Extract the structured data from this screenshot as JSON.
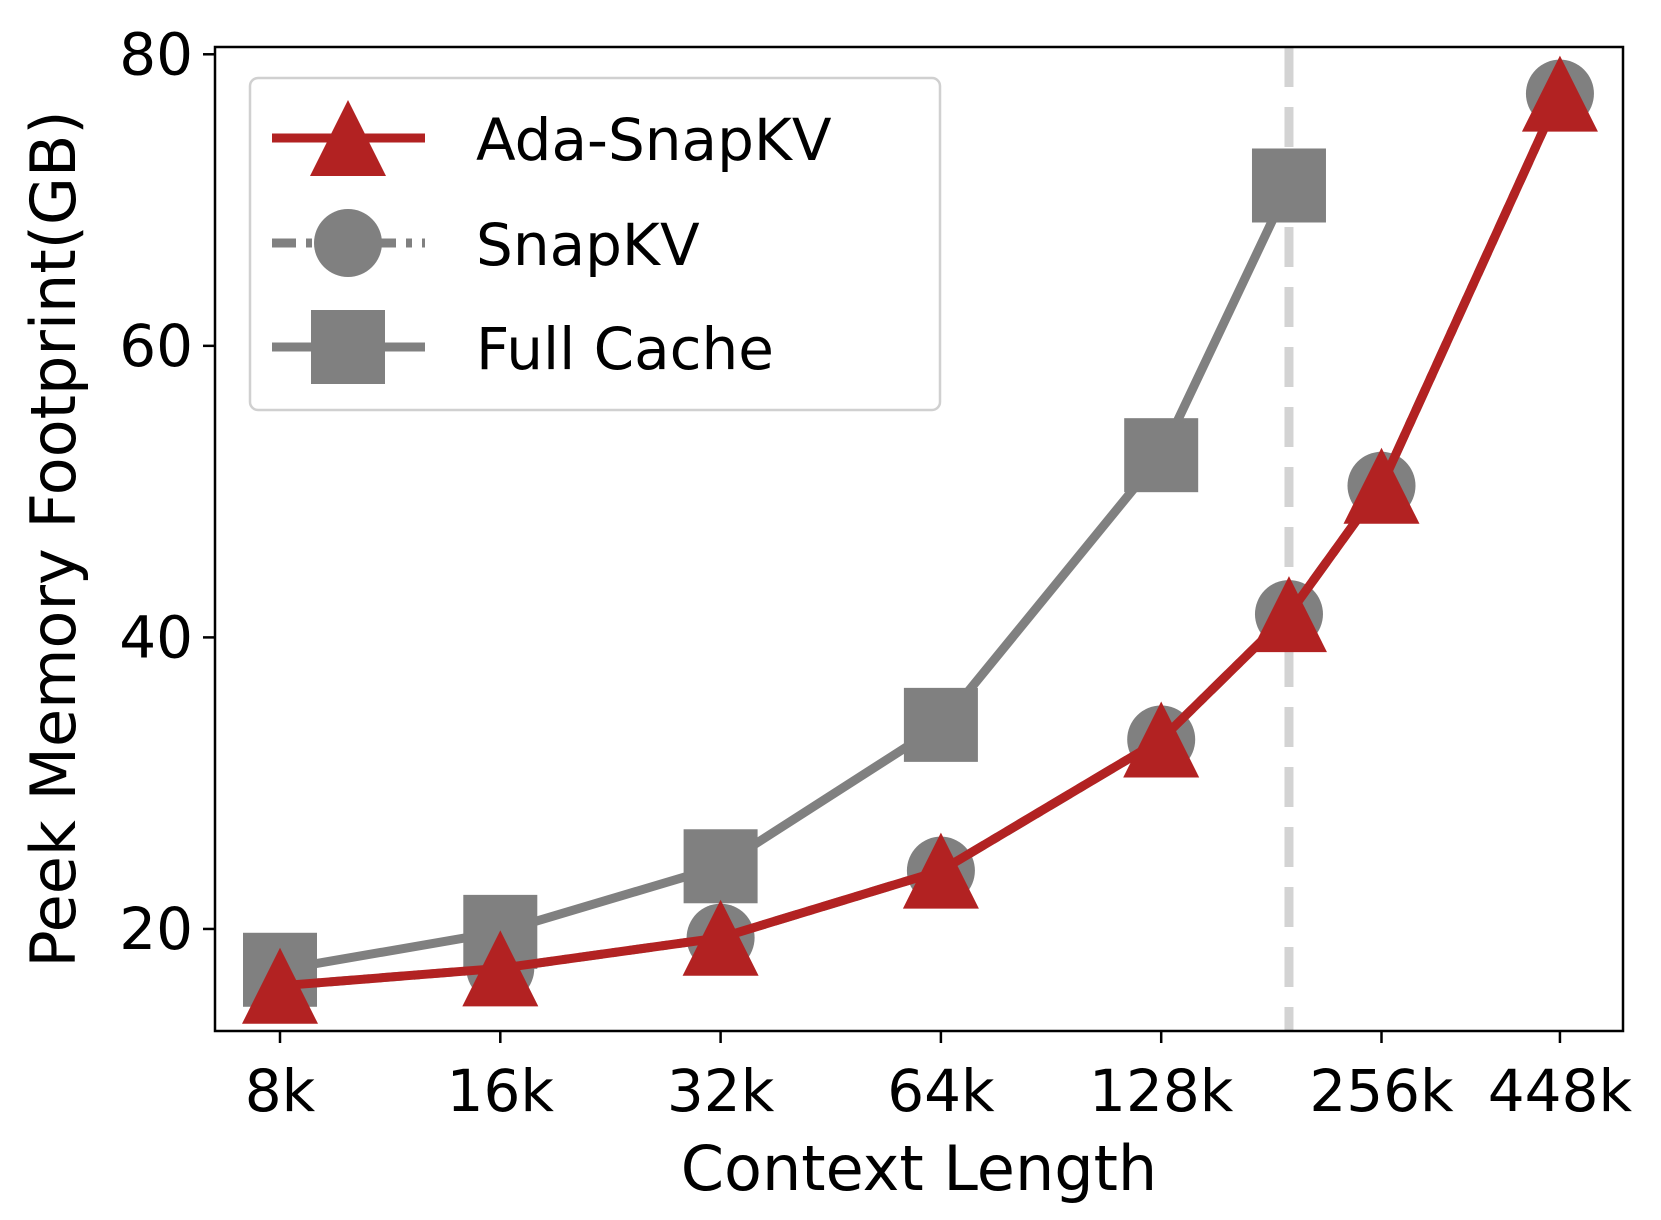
{
  "chart_data": {
    "type": "line",
    "title": "",
    "xlabel": "Context Length",
    "ylabel": "Peek Memory Footprint(GB)",
    "categories": [
      "8k",
      "16k",
      "32k",
      "64k",
      "128k",
      "256k",
      "448k"
    ],
    "ylim": [
      13,
      80.5
    ],
    "yticks": [
      20,
      40,
      60,
      80
    ],
    "grid": false,
    "legend_position": "top-left",
    "reference_line": {
      "x_position": 4.58,
      "style": "dashed",
      "color": "#d3d3d3"
    },
    "series": [
      {
        "name": "Ada-SnapKV",
        "color": "#b22222",
        "marker": "triangle",
        "linestyle": "solid",
        "x": [
          0,
          1,
          2,
          3,
          4,
          4.58,
          5,
          5.81
        ],
        "values": [
          16.1,
          17.3,
          19.4,
          24.0,
          33.0,
          41.6,
          50.4,
          77.3
        ]
      },
      {
        "name": "SnapKV",
        "color": "#808080",
        "marker": "circle",
        "linestyle": "dashdot",
        "x": [
          0,
          1,
          2,
          3,
          4,
          4.58,
          5,
          5.81
        ],
        "values": [
          16.1,
          17.3,
          19.4,
          24.0,
          33.0,
          41.6,
          50.4,
          77.3
        ]
      },
      {
        "name": "Full Cache",
        "color": "#808080",
        "marker": "square",
        "linestyle": "solid",
        "x": [
          0,
          1,
          2,
          3,
          4,
          4.58
        ],
        "values": [
          17.2,
          19.8,
          24.3,
          34.0,
          52.5,
          71.0
        ]
      }
    ]
  }
}
